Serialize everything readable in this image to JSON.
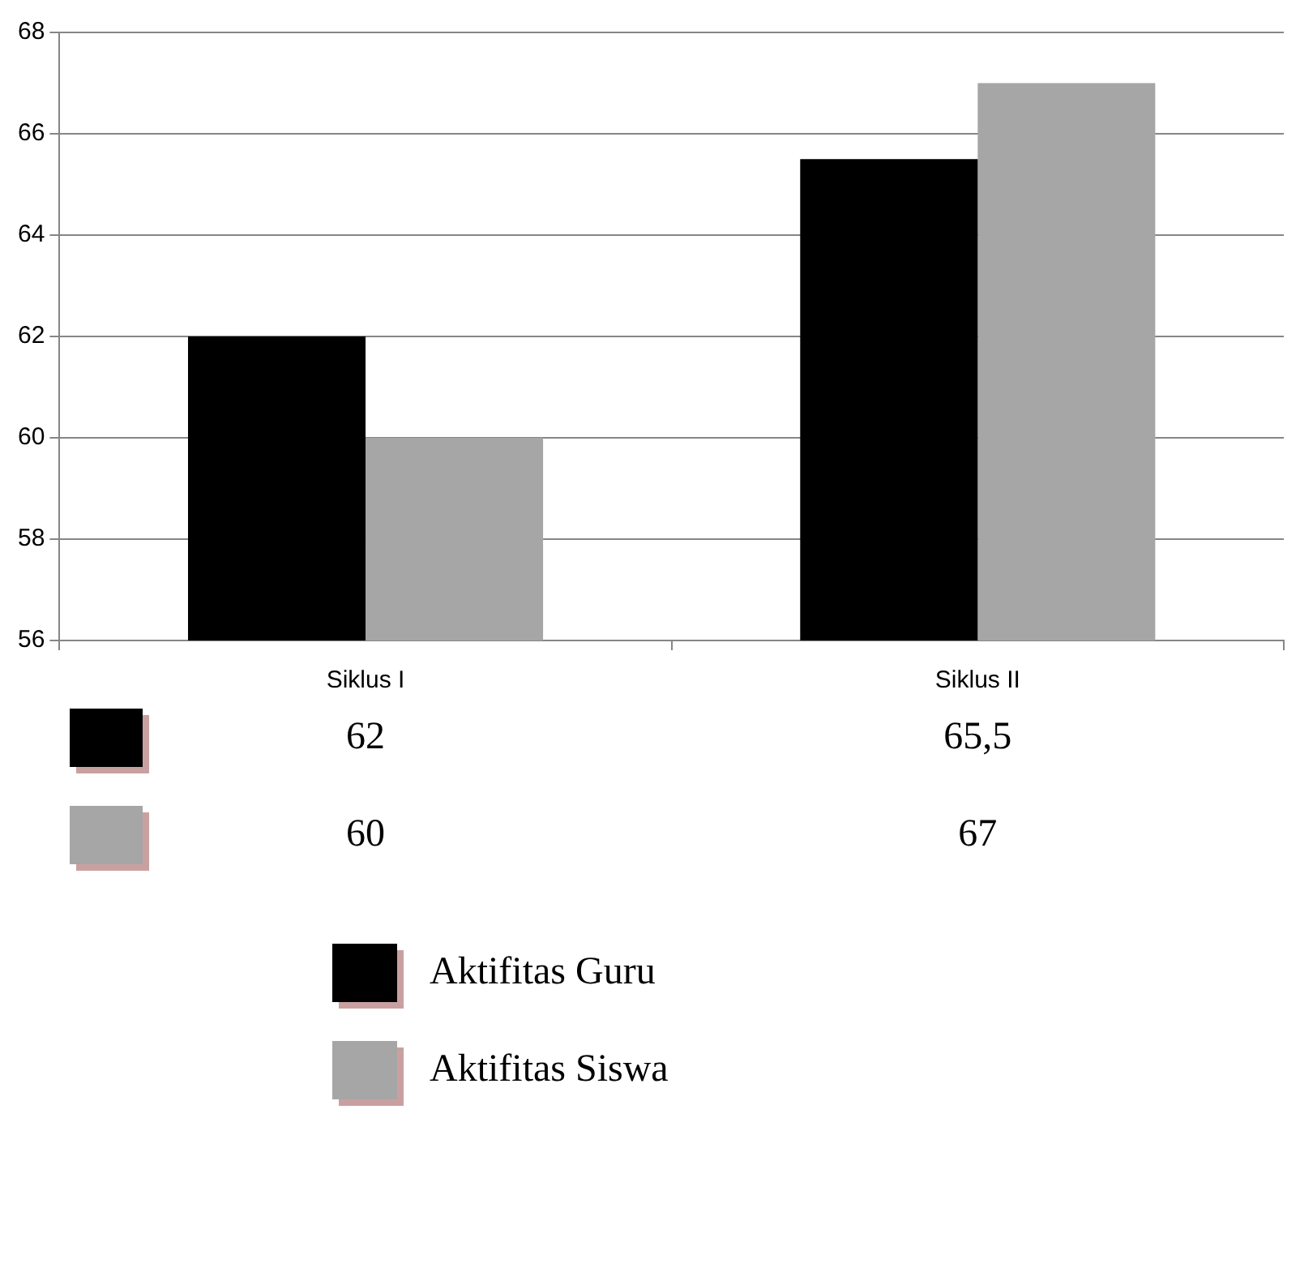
{
  "chart_data": {
    "type": "bar",
    "categories": [
      "Siklus I",
      "Siklus II"
    ],
    "series": [
      {
        "name": "Aktifitas Guru",
        "color": "#000000",
        "values": [
          62,
          65.5
        ],
        "value_labels": [
          "62",
          "65,5"
        ]
      },
      {
        "name": "Aktifitas Siswa",
        "color": "#a6a6a6",
        "values": [
          60,
          67
        ],
        "value_labels": [
          "60",
          "67"
        ]
      }
    ],
    "ylim": [
      56,
      68
    ],
    "yticks": [
      56,
      58,
      60,
      62,
      64,
      66,
      68
    ],
    "grid": "y",
    "legend": "bottom"
  }
}
